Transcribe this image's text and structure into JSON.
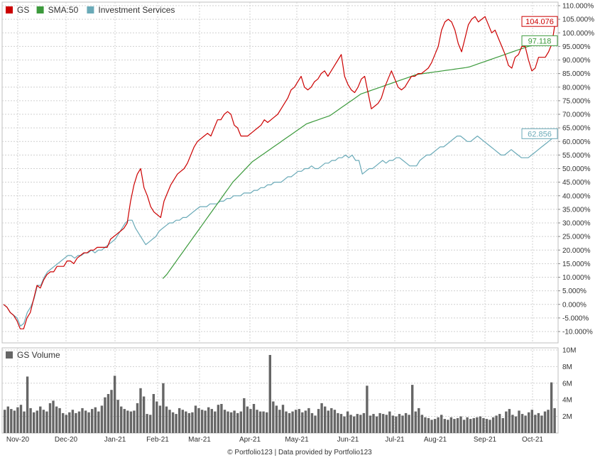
{
  "chart_data": [
    {
      "type": "line",
      "x_labels": [
        "Nov-20",
        "Dec-20",
        "Jan-21",
        "Feb-21",
        "Mar-21",
        "Apr-21",
        "May-21",
        "Jun-21",
        "Jul-21",
        "Aug-21",
        "Sep-21",
        "Oct-21"
      ],
      "y_ticks": [
        "110.000%",
        "105.000%",
        "100.000%",
        "95.000%",
        "90.000%",
        "85.000%",
        "80.000%",
        "75.000%",
        "70.000%",
        "65.000%",
        "60.000%",
        "55.000%",
        "50.000%",
        "45.000%",
        "40.000%",
        "35.000%",
        "30.000%",
        "25.000%",
        "20.000%",
        "15.000%",
        "10.000%",
        "5.000%",
        "0.000%",
        "-5.000%",
        "-10.000%"
      ],
      "ylim": [
        -12,
        111
      ],
      "grid": true,
      "legend_position": "top-left",
      "series": [
        {
          "name": "GS",
          "color": "#cc0000",
          "last_label": "104.076",
          "values": [
            0,
            -1,
            -3,
            -4,
            -6,
            -9,
            -9,
            -5,
            -3,
            2,
            7,
            6,
            9,
            11,
            12,
            12,
            14,
            14,
            14,
            16,
            16,
            15,
            17,
            18,
            19,
            19,
            20,
            20,
            21,
            21,
            21,
            21,
            24,
            25,
            26,
            27,
            28,
            30,
            38,
            44,
            48,
            50,
            43,
            40,
            36,
            34,
            33,
            32,
            38,
            41,
            44,
            46,
            48,
            49,
            50,
            52,
            55,
            58,
            60,
            61,
            62,
            63,
            62,
            65,
            68,
            68,
            70,
            71,
            70,
            66,
            65,
            62,
            62,
            62,
            63,
            64,
            65,
            66,
            68,
            67,
            68,
            69,
            70,
            72,
            74,
            76,
            79,
            80,
            82,
            84,
            80,
            79,
            80,
            82,
            83,
            85,
            86,
            84,
            86,
            88,
            90,
            92,
            84,
            81,
            79,
            78,
            80,
            83,
            84,
            78,
            72,
            73,
            74,
            76,
            80,
            83,
            86,
            83,
            80,
            79,
            80,
            82,
            84,
            84,
            85,
            85,
            86,
            87,
            89,
            92,
            95,
            101,
            104,
            105,
            104,
            101,
            96,
            93,
            98,
            103,
            105,
            106,
            104,
            105,
            106,
            103,
            100,
            101,
            98,
            95,
            92,
            88,
            87,
            91,
            92,
            95,
            95,
            90,
            86,
            87,
            91,
            91,
            91,
            93,
            96,
            104
          ]
        },
        {
          "name": "SMA:50",
          "color": "#3c9a3c",
          "last_label": "97.118",
          "values": [
            null,
            null,
            null,
            null,
            null,
            null,
            null,
            null,
            null,
            null,
            null,
            null,
            null,
            null,
            null,
            null,
            null,
            null,
            null,
            null,
            null,
            null,
            null,
            null,
            null,
            null,
            null,
            null,
            null,
            null,
            null,
            null,
            null,
            null,
            null,
            null,
            null,
            null,
            null,
            null,
            null,
            9.5,
            11,
            13,
            15,
            17,
            19,
            21,
            23,
            25,
            27,
            29,
            31,
            33,
            35,
            37,
            39,
            41,
            43,
            45,
            46.5,
            48,
            49.5,
            51,
            52.5,
            53.5,
            54.5,
            55.5,
            56.5,
            57.5,
            58.5,
            59.5,
            60.5,
            61.5,
            62.5,
            63.5,
            64.5,
            65.5,
            66.5,
            67,
            67.5,
            68,
            68.5,
            69,
            69.5,
            70.5,
            71.5,
            72.5,
            73.5,
            74.5,
            75.5,
            76.5,
            77.5,
            78,
            78.5,
            79,
            79.5,
            80,
            80.5,
            81,
            81.5,
            82,
            82.5,
            83,
            83.5,
            84,
            84.5,
            84.8,
            85,
            85.2,
            85.4,
            85.6,
            85.8,
            86,
            86.2,
            86.4,
            86.6,
            86.8,
            87,
            87.2,
            87.5,
            88,
            88.5,
            89,
            89.5,
            90,
            90.5,
            91,
            91.5,
            92,
            92.5,
            93,
            93.5,
            94,
            94.5,
            95,
            95.3,
            95.6,
            95.9,
            96.2,
            96.5,
            96.8,
            97.1
          ]
        },
        {
          "name": "Investment Services",
          "color": "#6aaab8",
          "last_label": "62.856",
          "values": [
            0,
            -1,
            -3,
            -4,
            -5,
            -8,
            -7,
            -3,
            -1,
            2,
            7,
            7,
            10,
            12,
            13,
            14,
            15,
            16,
            17,
            18,
            18,
            17,
            18,
            18,
            19,
            19,
            20,
            19,
            20,
            20,
            21,
            22,
            23,
            24,
            26,
            28,
            30,
            31,
            31,
            28,
            26,
            24,
            22,
            23,
            24,
            25,
            27,
            28,
            29,
            30,
            30,
            31,
            31,
            32,
            32,
            33,
            34,
            35,
            36,
            36,
            36,
            37,
            37,
            37,
            38,
            38,
            39,
            39,
            40,
            40,
            40,
            41,
            41,
            41,
            42,
            42,
            43,
            43,
            44,
            44,
            45,
            45,
            45,
            46,
            47,
            47,
            48,
            49,
            49,
            50,
            50,
            51,
            50,
            50,
            51,
            52,
            52,
            53,
            53,
            54,
            54,
            55,
            54,
            55,
            53,
            53,
            48,
            49,
            50,
            50,
            51,
            52,
            53,
            52,
            53,
            53,
            54,
            54,
            53,
            52,
            51,
            51,
            51,
            53,
            54,
            55,
            55,
            56,
            57,
            58,
            58,
            59,
            60,
            61,
            62,
            62,
            61,
            60,
            60,
            61,
            62,
            61,
            60,
            59,
            58,
            57,
            56,
            55,
            55,
            56,
            57,
            56,
            55,
            54,
            54,
            54,
            55,
            56,
            57,
            58,
            59,
            60,
            61,
            62.856
          ]
        }
      ]
    },
    {
      "type": "bar",
      "series_name": "GS Volume",
      "y_ticks": [
        "10M",
        "8M",
        "6M",
        "4M",
        "2M"
      ],
      "ylim": [
        0,
        10
      ],
      "color": "#666666",
      "values": [
        2.8,
        3.2,
        2.9,
        2.7,
        3.1,
        3.4,
        2.6,
        6.8,
        3.0,
        2.5,
        2.7,
        3.2,
        2.8,
        2.6,
        3.6,
        3.9,
        3.2,
        3.0,
        2.4,
        2.2,
        2.5,
        2.8,
        2.4,
        2.6,
        3.0,
        2.7,
        2.5,
        2.9,
        3.1,
        2.6,
        3.3,
        4.3,
        4.7,
        5.2,
        6.9,
        4.0,
        3.2,
        2.9,
        2.7,
        2.6,
        2.7,
        3.6,
        5.4,
        4.4,
        2.3,
        2.2,
        4.7,
        3.8,
        3.3,
        6.0,
        3.2,
        2.8,
        2.5,
        2.3,
        3.0,
        2.8,
        2.6,
        2.4,
        2.5,
        3.3,
        3.0,
        2.8,
        2.7,
        3.1,
        2.9,
        2.6,
        3.4,
        3.5,
        2.8,
        2.6,
        2.5,
        2.7,
        2.4,
        2.6,
        4.2,
        3.2,
        2.9,
        3.5,
        2.8,
        2.6,
        2.6,
        2.5,
        9.4,
        3.8,
        3.3,
        2.8,
        3.4,
        2.6,
        2.4,
        2.6,
        2.8,
        2.9,
        2.5,
        2.7,
        3.0,
        2.4,
        2.1,
        2.9,
        3.6,
        3.2,
        2.7,
        3.0,
        2.8,
        2.4,
        2.3,
        2.0,
        2.6,
        2.2,
        2.0,
        2.3,
        2.2,
        2.4,
        5.7,
        2.1,
        2.3,
        2.0,
        2.4,
        2.3,
        2.2,
        2.6,
        2.1,
        2.0,
        2.3,
        2.1,
        2.4,
        2.2,
        5.8,
        2.6,
        3.0,
        2.2,
        1.9,
        1.8,
        1.6,
        1.7,
        1.9,
        2.2,
        1.7,
        1.6,
        1.9,
        1.7,
        1.8,
        2.0,
        1.6,
        1.9,
        1.7,
        1.8,
        1.9,
        2.0,
        1.8,
        1.7,
        1.6,
        1.9,
        2.1,
        2.3,
        1.8,
        2.6,
        2.9,
        2.2,
        2.0,
        2.7,
        2.3,
        2.1,
        2.5,
        2.8,
        2.2,
        2.4,
        2.1,
        2.6,
        2.8,
        6.1,
        3.0
      ]
    }
  ],
  "copyright": "© Portfolio123 | Data provided by Portfolio123"
}
